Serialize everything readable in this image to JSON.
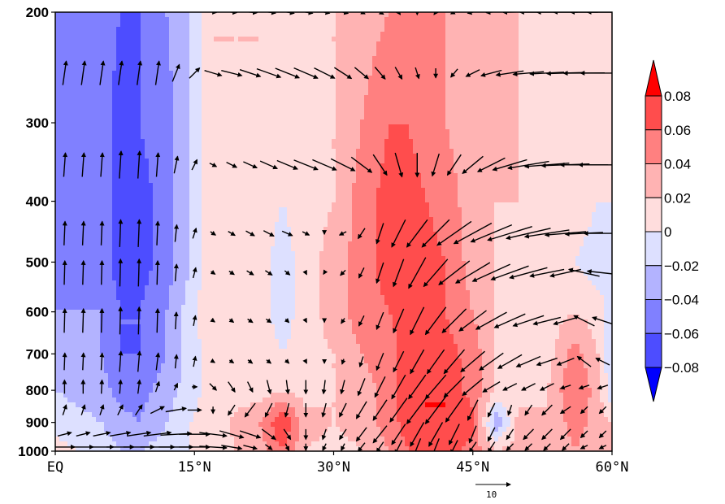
{
  "chart_data": {
    "type": "heatmap",
    "title": "",
    "xlabel": "",
    "ylabel": "",
    "x_ticks": [
      {
        "value": 0,
        "label": "EQ"
      },
      {
        "value": 15,
        "label": "15°N"
      },
      {
        "value": 30,
        "label": "30°N"
      },
      {
        "value": 45,
        "label": "45°N"
      },
      {
        "value": 60,
        "label": "60°N"
      }
    ],
    "y_ticks": [
      {
        "value": 200,
        "label": "200"
      },
      {
        "value": 300,
        "label": "300"
      },
      {
        "value": 400,
        "label": "400"
      },
      {
        "value": 500,
        "label": "500"
      },
      {
        "value": 600,
        "label": "600"
      },
      {
        "value": 700,
        "label": "700"
      },
      {
        "value": 800,
        "label": "800"
      },
      {
        "value": 900,
        "label": "900"
      },
      {
        "value": 1000,
        "label": "1000"
      }
    ],
    "xlim": [
      0,
      60
    ],
    "ylim": [
      1000,
      200
    ],
    "y_scale": "log",
    "colorbar": {
      "levels": [
        0.08,
        0.06,
        0.04,
        0.02,
        0,
        -0.02,
        -0.04,
        -0.06,
        -0.08
      ],
      "labels": [
        "0.08",
        "0.06",
        "0.04",
        "0.02",
        "0",
        "−0.02",
        "−0.04",
        "−0.06",
        "−0.08"
      ],
      "colors": [
        "#ff0000",
        "#ff4d4d",
        "#ff8080",
        "#ffb3b3",
        "#ffdddd",
        "#dde0ff",
        "#b3b3ff",
        "#8080ff",
        "#4d4dff",
        "#0000ff"
      ]
    },
    "reference_vector": {
      "label": "10"
    },
    "field": {
      "lon_pts": [
        0,
        5,
        7,
        9,
        12,
        14.5,
        17,
        22,
        24.5,
        27,
        30,
        33,
        36,
        38,
        40,
        42,
        45,
        47.5,
        50,
        53,
        56,
        58.5,
        60
      ],
      "p_pts": [
        200,
        300,
        400,
        500,
        600,
        700,
        800,
        900,
        1000
      ],
      "values": [
        [
          -0.05,
          -0.05,
          -0.06,
          -0.06,
          -0.04,
          -0.02,
          0.02,
          0.02,
          0.02,
          0.02,
          0.02,
          0.03,
          0.04,
          0.05,
          0.04,
          0.04,
          0.03,
          0.03,
          0.02,
          0.01,
          0.01,
          0.01,
          0.01
        ],
        [
          -0.05,
          -0.05,
          -0.07,
          -0.06,
          -0.05,
          -0.02,
          0.02,
          0.02,
          0.01,
          0.01,
          0.02,
          0.04,
          0.06,
          0.06,
          0.05,
          0.04,
          0.03,
          0.03,
          0.02,
          0.01,
          0.01,
          0.01,
          0.01
        ],
        [
          -0.05,
          -0.05,
          -0.07,
          -0.07,
          -0.05,
          -0.02,
          0.02,
          0.01,
          0.0,
          0.01,
          0.02,
          0.05,
          0.07,
          0.07,
          0.06,
          0.05,
          0.03,
          0.02,
          0.02,
          0.01,
          0.01,
          0.0,
          0.0
        ],
        [
          -0.05,
          -0.05,
          -0.07,
          -0.07,
          -0.05,
          -0.02,
          0.02,
          0.01,
          -0.01,
          0.01,
          0.03,
          0.05,
          0.07,
          0.07,
          0.07,
          0.06,
          0.03,
          0.02,
          0.01,
          0.01,
          0.0,
          -0.01,
          -0.01
        ],
        [
          -0.04,
          -0.04,
          -0.06,
          -0.06,
          -0.04,
          -0.01,
          0.02,
          0.01,
          -0.01,
          0.01,
          0.03,
          0.05,
          0.06,
          0.07,
          0.07,
          0.06,
          0.04,
          0.02,
          0.01,
          0.01,
          0.02,
          0.01,
          -0.01
        ],
        [
          -0.03,
          -0.04,
          -0.06,
          -0.06,
          -0.04,
          -0.01,
          0.01,
          0.01,
          0.0,
          0.01,
          0.02,
          0.04,
          0.05,
          0.07,
          0.08,
          0.07,
          0.05,
          0.02,
          0.01,
          0.01,
          0.05,
          0.02,
          -0.02
        ],
        [
          -0.02,
          -0.03,
          -0.05,
          -0.05,
          -0.03,
          -0.01,
          0.01,
          0.01,
          0.02,
          0.01,
          0.02,
          0.03,
          0.05,
          0.07,
          0.08,
          0.08,
          0.05,
          0.02,
          0.01,
          0.02,
          0.06,
          0.03,
          -0.02
        ],
        [
          -0.01,
          -0.02,
          -0.03,
          -0.04,
          -0.02,
          0.0,
          0.01,
          0.04,
          0.08,
          0.03,
          0.02,
          0.03,
          0.05,
          0.07,
          0.08,
          0.08,
          0.07,
          -0.04,
          0.03,
          0.02,
          0.05,
          0.03,
          0.02
        ],
        [
          0.01,
          -0.01,
          -0.02,
          -0.02,
          -0.01,
          0.0,
          0.01,
          0.03,
          0.06,
          0.02,
          0.01,
          0.02,
          0.04,
          0.06,
          0.08,
          0.07,
          0.05,
          0.02,
          0.03,
          0.02,
          0.04,
          0.02,
          0.03
        ]
      ]
    },
    "vectors": {
      "lon_grid": [
        1,
        3,
        5,
        7,
        9,
        11,
        13,
        15,
        17,
        19,
        21,
        23,
        25,
        27,
        29,
        31,
        33,
        35,
        37,
        39,
        41,
        43,
        45,
        47,
        49,
        51,
        53,
        55,
        57,
        59
      ],
      "rows": [
        {
          "p": 200,
          "u": [
            null,
            null,
            null,
            null,
            null,
            null,
            null,
            null,
            2,
            3,
            4,
            4,
            4,
            4,
            3,
            3,
            2,
            2,
            1,
            0,
            -1,
            -2,
            -3,
            -3,
            -4,
            -5,
            -6,
            -7,
            -8,
            -9
          ],
          "v": [
            null,
            null,
            null,
            null,
            null,
            null,
            null,
            null,
            -0.2,
            -0.3,
            -0.4,
            -0.5,
            -0.6,
            -0.6,
            -0.6,
            -0.7,
            -1,
            -1.2,
            -1.4,
            -1.5,
            -1.4,
            -1,
            -0.6,
            -0.3,
            -0.1,
            0,
            0,
            0,
            0,
            0
          ]
        },
        {
          "p": 250,
          "u": [
            1,
            1,
            1,
            1,
            1,
            1,
            2,
            3,
            5,
            6,
            6,
            7,
            7,
            7,
            6,
            5,
            4,
            3,
            2,
            1,
            0,
            -2,
            -4,
            -6,
            -8,
            -9,
            -10,
            -11,
            -12,
            -13
          ],
          "v": [
            7,
            7,
            7,
            7,
            7,
            7,
            5,
            3,
            -1.5,
            -1.5,
            -2,
            -2.5,
            -2.8,
            -3,
            -3,
            -3.2,
            -3.3,
            -3.5,
            -3.5,
            -3.2,
            -2.8,
            -2.4,
            -2,
            -1.6,
            -1.2,
            -0.8,
            -0.5,
            -0.3,
            -0.1,
            0
          ]
        },
        {
          "p": 350,
          "u": [
            0.5,
            0.5,
            0.5,
            0.5,
            0.5,
            0.5,
            1,
            1.5,
            2,
            3,
            4,
            5,
            6,
            7,
            7,
            7,
            6,
            4,
            2,
            0,
            -2,
            -4,
            -6,
            -8,
            -10,
            -12,
            -13,
            -14,
            -14,
            -14
          ],
          "v": [
            7,
            7,
            7,
            8,
            8,
            7,
            5,
            3,
            -1,
            -1.5,
            -1.8,
            -2.2,
            -2.5,
            -2.8,
            -3,
            -3.5,
            -4.5,
            -6,
            -7,
            -7,
            -6.5,
            -6,
            -5,
            -4,
            -3,
            -2,
            -1,
            -0.5,
            0,
            0
          ]
        },
        {
          "p": 450,
          "u": [
            0.3,
            0.3,
            0.3,
            0.3,
            0.3,
            0.3,
            0.5,
            1,
            1.5,
            2,
            2.5,
            3,
            3,
            2,
            0,
            -2,
            -2,
            -2,
            -4,
            -6,
            -8,
            -10,
            -11,
            -12,
            -13,
            -13,
            -13,
            -12,
            -11,
            -11
          ],
          "v": [
            7,
            7,
            7,
            8,
            8,
            7,
            5,
            3,
            -1,
            -1.2,
            -1.4,
            -1.6,
            -1.3,
            -1,
            -0.5,
            -1,
            -3,
            -6,
            -8,
            -8,
            -8,
            -7,
            -6,
            -5,
            -4,
            -3,
            -2,
            -1,
            -0.5,
            0
          ]
        },
        {
          "p": 520,
          "u": [
            0.2,
            0.2,
            0.2,
            0.2,
            0.2,
            0.2,
            0.4,
            0.8,
            1.2,
            1.5,
            2,
            2,
            1.5,
            0.5,
            -0.5,
            -1.5,
            -1.5,
            -2,
            -3,
            -5,
            -7,
            -9,
            -10,
            -11,
            -11,
            -11,
            -10,
            -9,
            -9,
            -9
          ],
          "v": [
            7,
            7,
            7,
            8,
            8,
            7,
            5,
            3,
            -0.8,
            -1,
            -1.2,
            -1.3,
            -1.2,
            -1,
            -0.8,
            -1.5,
            -3,
            -6,
            -8,
            -9,
            -8,
            -7,
            -6,
            -5,
            -4,
            -3,
            -2,
            -2,
            2,
            1
          ]
        },
        {
          "p": 620,
          "u": [
            0.2,
            0.2,
            0.2,
            0.2,
            0.2,
            0.2,
            0.3,
            0.6,
            1,
            1.2,
            1.5,
            1.5,
            1,
            0.5,
            0,
            -1,
            -1.5,
            -2,
            -3,
            -4,
            -6,
            -7,
            -8,
            -9,
            -9,
            -9,
            -8,
            -7,
            -6,
            -6
          ],
          "v": [
            7,
            7,
            7,
            8,
            8,
            7,
            5,
            3,
            -0.7,
            -0.9,
            -1,
            -1,
            -1,
            -0.9,
            -0.9,
            -1.5,
            -3,
            -5,
            -7,
            -8,
            -8,
            -7,
            -6,
            -5,
            -4,
            -3,
            -2,
            -2,
            3,
            2
          ]
        },
        {
          "p": 720,
          "u": [
            0.2,
            0.2,
            0.3,
            0.4,
            0.5,
            0.6,
            0.4,
            0.6,
            1,
            1.2,
            1.3,
            1.3,
            1,
            0.5,
            0,
            -0.5,
            -1,
            -2,
            -3,
            -4,
            -5,
            -6,
            -7,
            -7,
            -7,
            -7,
            -6,
            -5,
            -4,
            -4
          ],
          "v": [
            5,
            5,
            5,
            6,
            6,
            5,
            4,
            3,
            -0.6,
            -0.8,
            -1,
            -1,
            -1,
            -1,
            -1,
            -1.5,
            -3,
            -5,
            -6,
            -7,
            -7,
            -7,
            -6,
            -5,
            -4,
            -3,
            -2,
            -2,
            3,
            2
          ]
        },
        {
          "p": 790,
          "u": [
            0,
            0,
            0.2,
            0.3,
            0.5,
            1,
            1,
            1.5,
            2,
            2,
            1.5,
            1,
            0.5,
            0,
            -0.5,
            -1,
            -2,
            -3,
            -4,
            -5,
            -6,
            -6,
            -6,
            -5,
            -4,
            -4,
            -4,
            -3,
            -3,
            -3
          ],
          "v": [
            4,
            4,
            4,
            4,
            4,
            3,
            2,
            0,
            -2,
            -3,
            -3,
            -4,
            -4,
            -4,
            -4,
            -4,
            -5,
            -6,
            -7,
            -7,
            -7,
            -6,
            -5,
            -3,
            -2,
            -2,
            -2,
            -1,
            -1,
            -1
          ]
        },
        {
          "p": 860,
          "u": [
            1,
            1,
            1,
            1.5,
            2,
            4,
            6,
            4,
            0,
            -2,
            -3,
            -2,
            -1,
            0,
            -1,
            -2,
            -3,
            -4,
            -5,
            -6,
            -6,
            -5,
            -3,
            -2,
            -1,
            -2,
            -3,
            -3,
            -2,
            -2
          ],
          "v": [
            3,
            3,
            3,
            3,
            3,
            2,
            1,
            0,
            -2,
            -3,
            -4,
            -4,
            -4,
            -4,
            -4,
            -4,
            -5,
            -6,
            -7,
            -8,
            -8,
            -7,
            -6,
            -4,
            -3,
            -3,
            -3,
            -2,
            -2,
            -2
          ]
        },
        {
          "p": 940,
          "u": [
            4,
            4,
            5,
            6,
            7,
            8,
            9,
            9,
            8,
            7,
            6,
            4,
            2,
            0,
            -1,
            -2,
            -3,
            -4,
            -4,
            -4,
            -4,
            -3,
            -2,
            -2,
            -2,
            -3,
            -3,
            -3,
            -2,
            -2
          ],
          "v": [
            1,
            1,
            1,
            1,
            1,
            1,
            0.5,
            0,
            -1,
            -2,
            -2,
            -3,
            -3,
            -3,
            -3,
            -3,
            -4,
            -5,
            -6,
            -7,
            -7,
            -6,
            -5,
            -4,
            -3,
            -3,
            -3,
            -3,
            -2,
            -2
          ]
        },
        {
          "p": 985,
          "u": [
            6,
            6,
            7,
            8,
            9,
            10,
            10,
            9,
            8,
            6,
            4,
            2,
            1,
            0,
            -1,
            -1,
            -2,
            -2,
            -2,
            -2,
            -2,
            -2,
            -2,
            -2,
            -2,
            -2,
            -2,
            -2,
            -2,
            -2
          ],
          "v": [
            0,
            0,
            0,
            0,
            0,
            0,
            0,
            0,
            -0.5,
            -1,
            -1,
            -1.5,
            -2,
            -2,
            -2,
            -2,
            -2.5,
            -3,
            -4,
            -5,
            -5,
            -4,
            -3,
            -3,
            -2,
            -2,
            -2,
            -2,
            -1,
            -1
          ]
        }
      ]
    }
  }
}
